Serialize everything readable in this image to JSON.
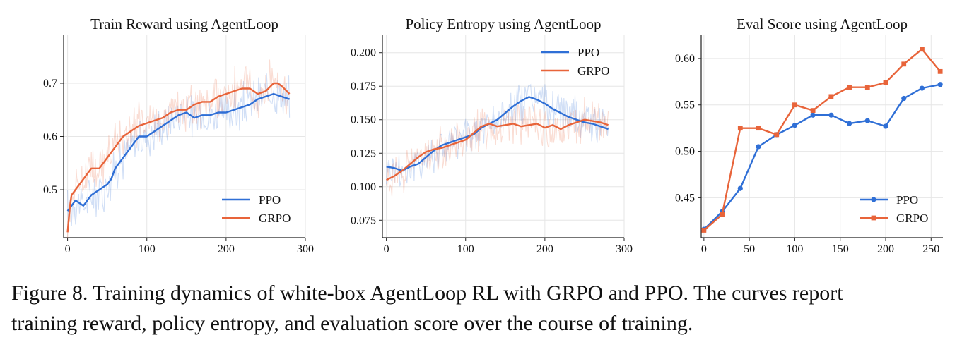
{
  "colors": {
    "ppo": "#2f6fd6",
    "grpo": "#e8643a",
    "grid": "#e6e6e6",
    "axis": "#222222"
  },
  "caption": {
    "line1": "Figure 8. Training dynamics of white-box AgentLoop RL with GRPO and PPO. The curves report",
    "line2": "training reward, policy entropy, and evaluation score over the course of training."
  },
  "chart_data": [
    {
      "type": "line",
      "title": "Train Reward using AgentLoop",
      "xlabel": "",
      "ylabel": "",
      "xlim": [
        -5,
        300
      ],
      "ylim": [
        0.41,
        0.79
      ],
      "xticks": [
        0,
        100,
        200,
        300
      ],
      "yticks": [
        0.5,
        0.6,
        0.7
      ],
      "ytick_labels": [
        "0.5",
        "0.6",
        "0.7"
      ],
      "grid": true,
      "legend": "lower-right",
      "raw_noise": 0.035,
      "series": [
        {
          "name": "PPO",
          "color": "#2f6fd6",
          "x": [
            0,
            5,
            10,
            20,
            30,
            40,
            50,
            55,
            60,
            70,
            80,
            90,
            100,
            110,
            120,
            130,
            140,
            150,
            160,
            170,
            180,
            190,
            200,
            210,
            220,
            230,
            240,
            250,
            260,
            270,
            280
          ],
          "y": [
            0.46,
            0.47,
            0.48,
            0.47,
            0.49,
            0.5,
            0.51,
            0.52,
            0.54,
            0.56,
            0.58,
            0.6,
            0.6,
            0.61,
            0.62,
            0.63,
            0.64,
            0.645,
            0.635,
            0.64,
            0.64,
            0.645,
            0.645,
            0.65,
            0.655,
            0.66,
            0.67,
            0.675,
            0.68,
            0.675,
            0.67
          ]
        },
        {
          "name": "GRPO",
          "color": "#e8643a",
          "x": [
            0,
            3,
            5,
            10,
            15,
            20,
            25,
            30,
            40,
            50,
            60,
            65,
            70,
            80,
            90,
            100,
            110,
            120,
            130,
            140,
            150,
            160,
            170,
            180,
            190,
            200,
            210,
            220,
            230,
            240,
            250,
            260,
            265,
            270,
            280
          ],
          "y": [
            0.42,
            0.47,
            0.49,
            0.5,
            0.51,
            0.52,
            0.53,
            0.54,
            0.54,
            0.56,
            0.58,
            0.59,
            0.6,
            0.61,
            0.62,
            0.625,
            0.63,
            0.635,
            0.645,
            0.65,
            0.65,
            0.66,
            0.665,
            0.665,
            0.675,
            0.68,
            0.685,
            0.69,
            0.69,
            0.68,
            0.685,
            0.7,
            0.7,
            0.695,
            0.68
          ]
        }
      ]
    },
    {
      "type": "line",
      "title": "Policy Entropy using AgentLoop",
      "xlabel": "",
      "ylabel": "",
      "xlim": [
        -5,
        300
      ],
      "ylim": [
        0.062,
        0.213
      ],
      "xticks": [
        0,
        100,
        200,
        300
      ],
      "yticks": [
        0.075,
        0.1,
        0.125,
        0.15,
        0.175,
        0.2
      ],
      "ytick_labels": [
        "0.075",
        "0.100",
        "0.125",
        "0.150",
        "0.175",
        "0.200"
      ],
      "grid": true,
      "legend": "upper-right",
      "raw_noise": 0.013,
      "series": [
        {
          "name": "PPO",
          "color": "#2f6fd6",
          "x": [
            0,
            10,
            20,
            30,
            40,
            50,
            60,
            70,
            80,
            90,
            100,
            110,
            120,
            130,
            140,
            150,
            160,
            170,
            180,
            190,
            200,
            210,
            220,
            230,
            240,
            250,
            260,
            270,
            280
          ],
          "y": [
            0.115,
            0.114,
            0.112,
            0.115,
            0.117,
            0.122,
            0.127,
            0.131,
            0.133,
            0.135,
            0.137,
            0.139,
            0.144,
            0.147,
            0.15,
            0.155,
            0.16,
            0.164,
            0.167,
            0.165,
            0.162,
            0.158,
            0.155,
            0.152,
            0.15,
            0.148,
            0.147,
            0.145,
            0.143
          ]
        },
        {
          "name": "GRPO",
          "color": "#e8643a",
          "x": [
            0,
            10,
            20,
            30,
            40,
            50,
            60,
            70,
            80,
            90,
            100,
            110,
            120,
            130,
            140,
            150,
            160,
            170,
            180,
            190,
            200,
            210,
            220,
            230,
            240,
            250,
            260,
            270,
            280
          ],
          "y": [
            0.105,
            0.108,
            0.112,
            0.117,
            0.122,
            0.126,
            0.128,
            0.129,
            0.131,
            0.133,
            0.135,
            0.14,
            0.145,
            0.147,
            0.145,
            0.146,
            0.147,
            0.145,
            0.146,
            0.147,
            0.144,
            0.146,
            0.143,
            0.146,
            0.148,
            0.15,
            0.149,
            0.148,
            0.146
          ]
        }
      ]
    },
    {
      "type": "line",
      "title": "Eval Score using AgentLoop",
      "xlabel": "",
      "ylabel": "",
      "xlim": [
        -3,
        263
      ],
      "ylim": [
        0.407,
        0.625
      ],
      "xticks": [
        0,
        50,
        100,
        150,
        200,
        250
      ],
      "yticks": [
        0.45,
        0.5,
        0.55,
        0.6
      ],
      "ytick_labels": [
        "0.45",
        "0.50",
        "0.55",
        "0.60"
      ],
      "grid": true,
      "legend": "lower-right",
      "raw_noise": 0,
      "series": [
        {
          "name": "PPO",
          "color": "#2f6fd6",
          "marker": "circle",
          "x": [
            0,
            20,
            40,
            60,
            80,
            100,
            120,
            140,
            160,
            180,
            200,
            220,
            240,
            260
          ],
          "y": [
            0.416,
            0.435,
            0.46,
            0.505,
            0.518,
            0.528,
            0.539,
            0.539,
            0.53,
            0.533,
            0.527,
            0.557,
            0.568,
            0.572
          ]
        },
        {
          "name": "GRPO",
          "color": "#e8643a",
          "marker": "square",
          "x": [
            0,
            20,
            40,
            60,
            80,
            100,
            120,
            140,
            160,
            180,
            200,
            220,
            240,
            260
          ],
          "y": [
            0.415,
            0.432,
            0.525,
            0.525,
            0.518,
            0.55,
            0.544,
            0.559,
            0.569,
            0.569,
            0.574,
            0.594,
            0.61,
            0.586
          ]
        }
      ]
    }
  ]
}
